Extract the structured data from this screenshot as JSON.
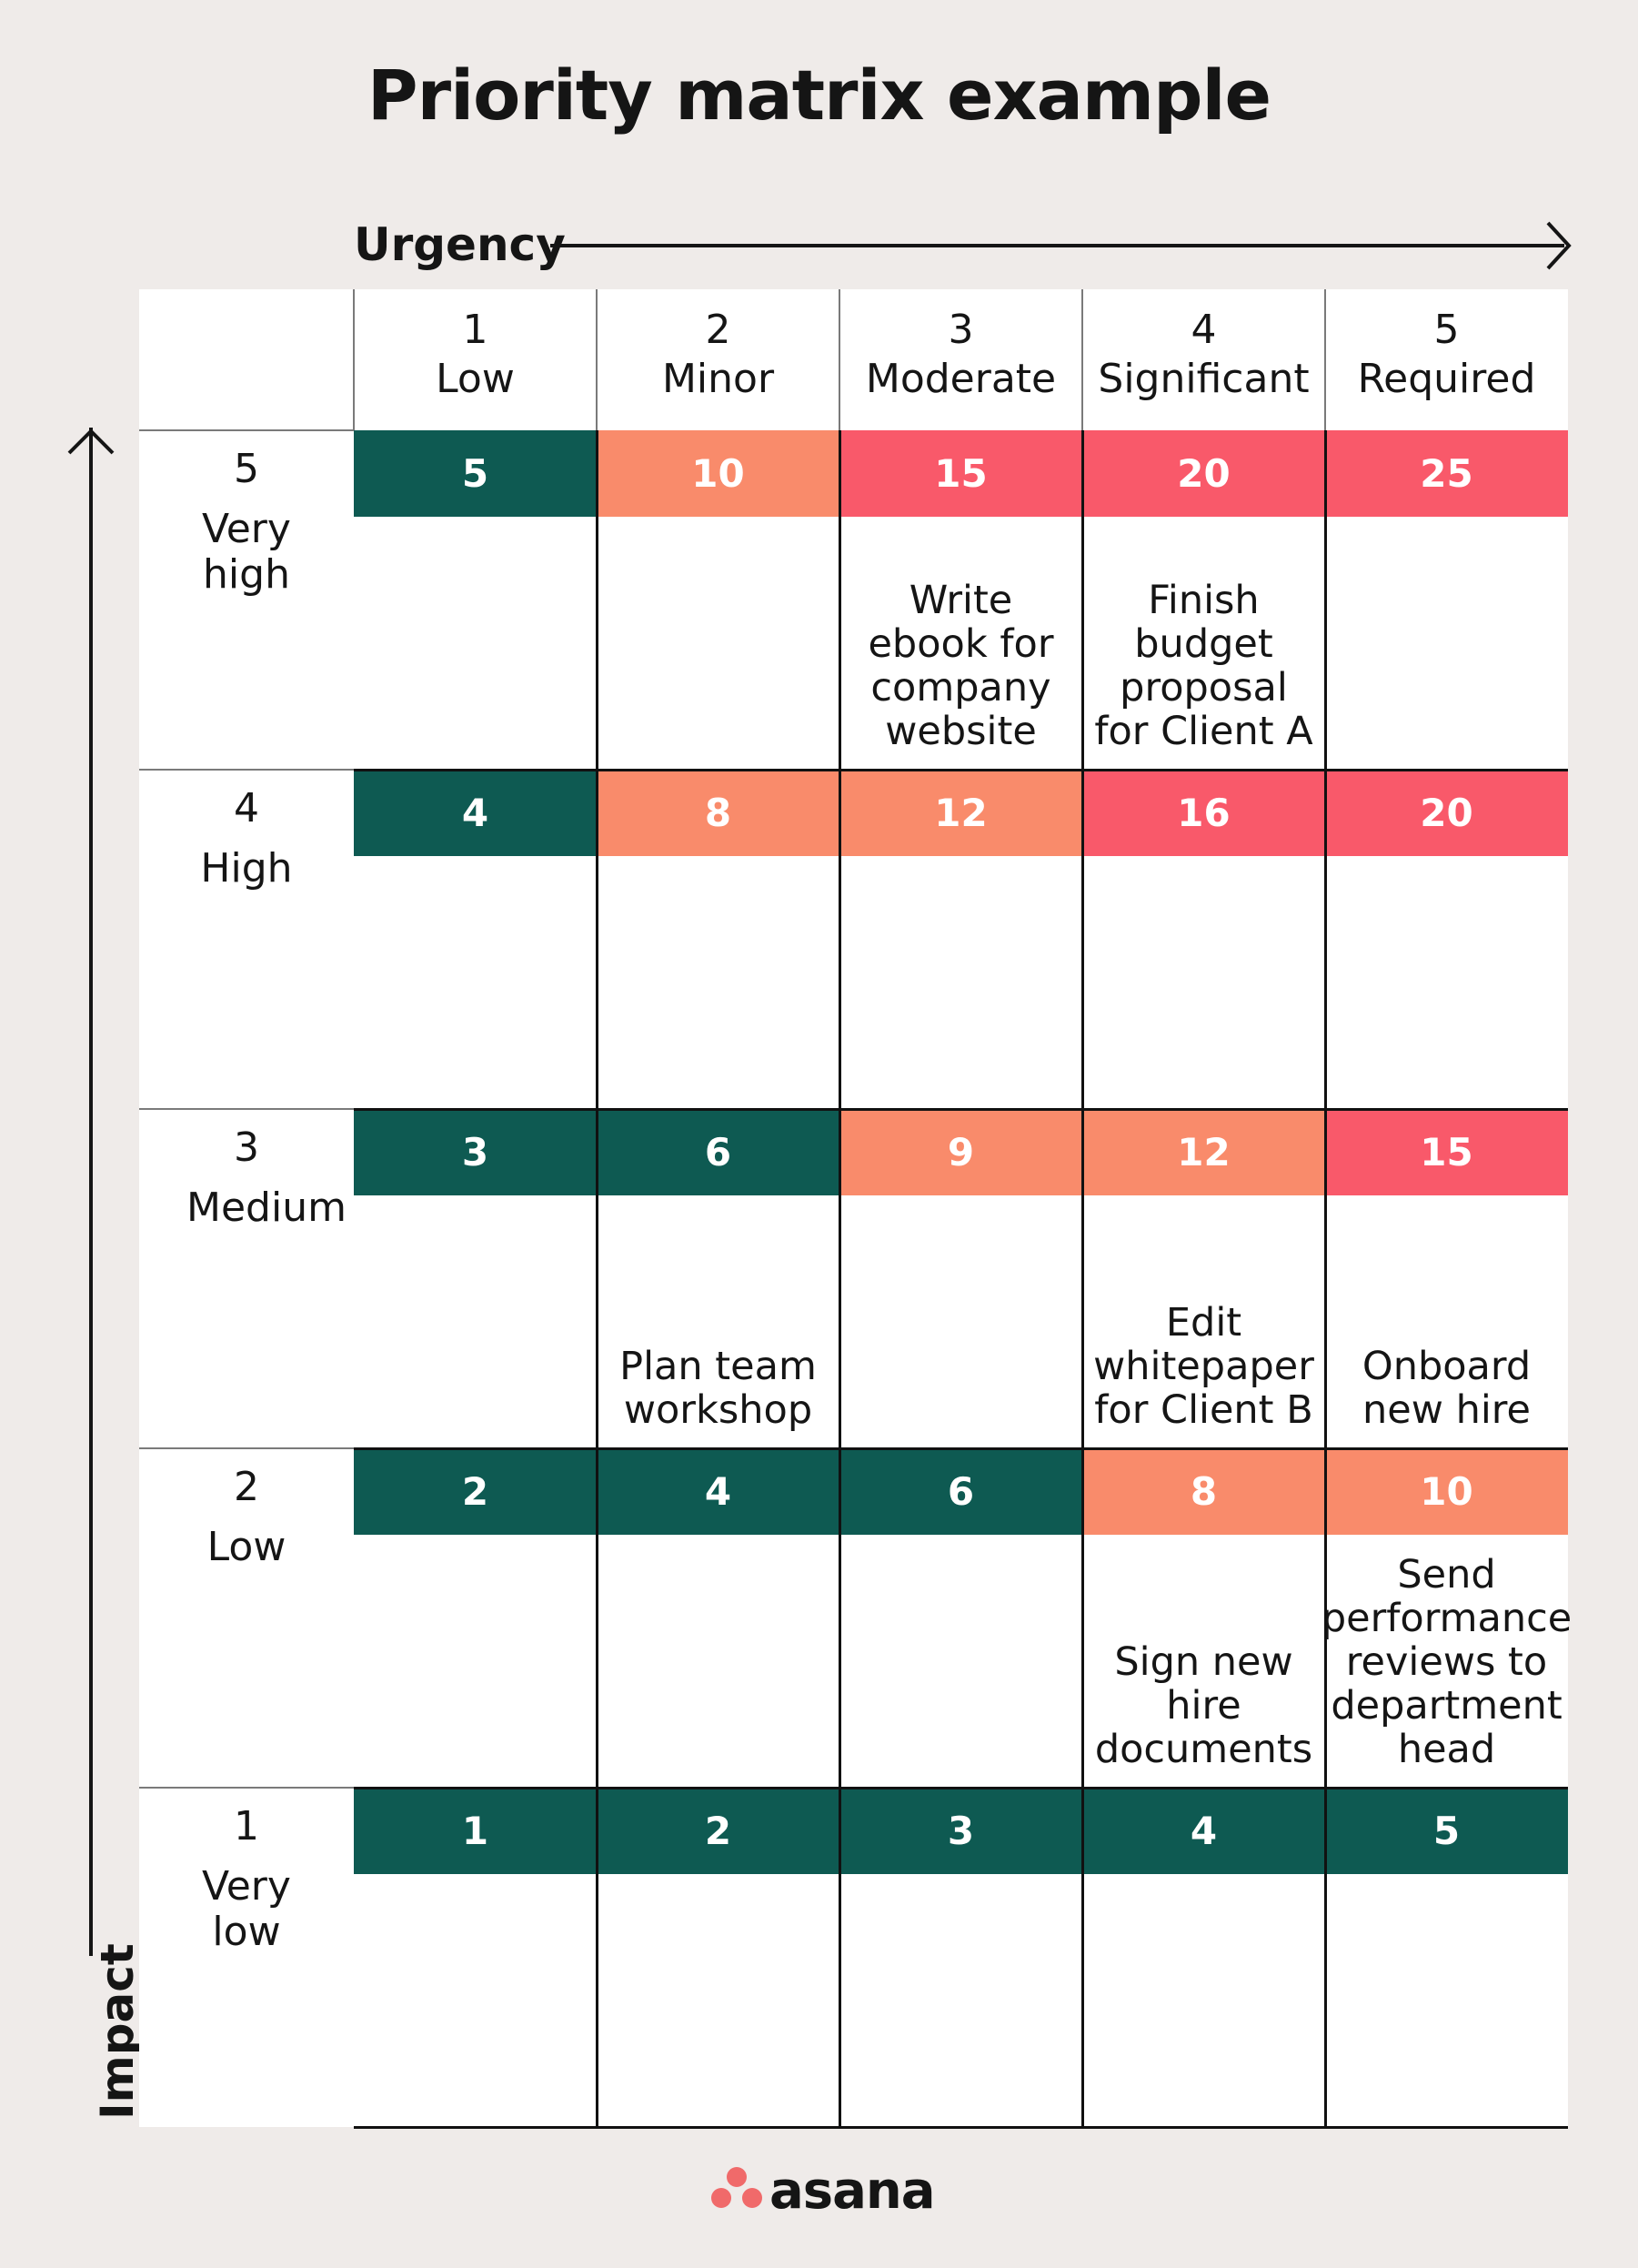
{
  "title": "Priority matrix example",
  "x_axis_label": "Urgency",
  "y_axis_label": "Impact",
  "colors": {
    "background": "#efebe9",
    "low": "#0e5a52",
    "medium": "#f98b6b",
    "high": "#f9596a",
    "logo": "#f06a6a"
  },
  "columns": [
    {
      "num": "1",
      "label": "Low"
    },
    {
      "num": "2",
      "label": "Minor"
    },
    {
      "num": "3",
      "label": "Moderate"
    },
    {
      "num": "4",
      "label": "Significant"
    },
    {
      "num": "5",
      "label": "Required"
    }
  ],
  "rows": [
    {
      "num": "5",
      "label": "Very high",
      "scores": [
        "5",
        "10",
        "15",
        "20",
        "25"
      ],
      "levels": [
        "low",
        "medium",
        "high",
        "high",
        "high"
      ],
      "tasks": [
        "",
        "",
        "Write ebook for company website",
        "Finish budget proposal for Client A",
        ""
      ]
    },
    {
      "num": "4",
      "label": "High",
      "scores": [
        "4",
        "8",
        "12",
        "16",
        "20"
      ],
      "levels": [
        "low",
        "medium",
        "medium",
        "high",
        "high"
      ],
      "tasks": [
        "",
        "",
        "",
        "",
        ""
      ]
    },
    {
      "num": "3",
      "label": "Medium",
      "scores": [
        "3",
        "6",
        "9",
        "12",
        "15"
      ],
      "levels": [
        "low",
        "low",
        "medium",
        "medium",
        "high"
      ],
      "tasks": [
        "",
        "Plan team workshop",
        "",
        "Edit whitepaper for Client B",
        "Onboard new hire"
      ]
    },
    {
      "num": "2",
      "label": "Low",
      "scores": [
        "2",
        "4",
        "6",
        "8",
        "10"
      ],
      "levels": [
        "low",
        "low",
        "low",
        "medium",
        "medium"
      ],
      "tasks": [
        "",
        "",
        "",
        "Sign new hire documents",
        "Send performance reviews to department head"
      ]
    },
    {
      "num": "1",
      "label": "Very low",
      "scores": [
        "1",
        "2",
        "3",
        "4",
        "5"
      ],
      "levels": [
        "low",
        "low",
        "low",
        "low",
        "low"
      ],
      "tasks": [
        "",
        "",
        "",
        "",
        ""
      ]
    }
  ],
  "logo_text": "asana"
}
